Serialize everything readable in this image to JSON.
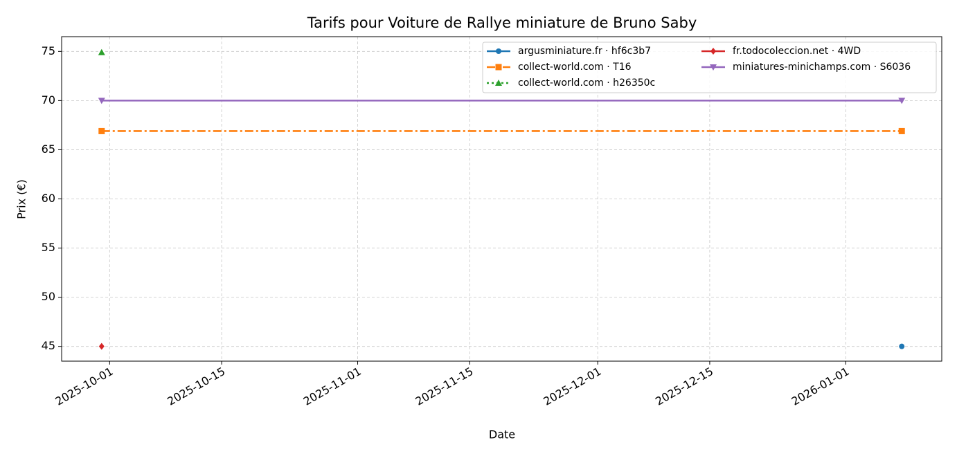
{
  "chart_data": {
    "type": "line",
    "title": "Tarifs pour Voiture de Rallye miniature de Bruno Saby",
    "xlabel": "Date",
    "ylabel": "Prix (€)",
    "x": [
      "2025-09-30",
      "2026-01-08"
    ],
    "series": [
      {
        "name": "argusminiature.fr · hf6c3b7",
        "color": "#1f77b4",
        "linestyle": "solid",
        "marker": "circle",
        "values": [
          null,
          45
        ]
      },
      {
        "name": "collect-world.com · T16",
        "color": "#ff7f0e",
        "linestyle": "dashdot",
        "marker": "square",
        "values": [
          66.9,
          66.9
        ]
      },
      {
        "name": "collect-world.com · h26350c",
        "color": "#2ca02c",
        "linestyle": "dotted",
        "marker": "triangle-up",
        "values": [
          74.9,
          null
        ]
      },
      {
        "name": "fr.todocoleccion.net · 4WD",
        "color": "#d62728",
        "linestyle": "solid",
        "marker": "diamond",
        "values": [
          45,
          null
        ]
      },
      {
        "name": "miniatures-minichamps.com · S6036",
        "color": "#9467bd",
        "linestyle": "solid",
        "marker": "triangle-down",
        "values": [
          70,
          70
        ]
      }
    ],
    "xlim": [
      "2025-09-25",
      "2026-01-13"
    ],
    "xticks": [
      "2025-10-01",
      "2025-10-15",
      "2025-11-01",
      "2025-11-15",
      "2025-12-01",
      "2025-12-15",
      "2026-01-01"
    ],
    "ylim": [
      43.5,
      76.5
    ],
    "yticks": [
      45,
      50,
      55,
      60,
      65,
      70,
      75
    ],
    "grid": true,
    "legend": "upper right",
    "legend_columns": 2
  }
}
